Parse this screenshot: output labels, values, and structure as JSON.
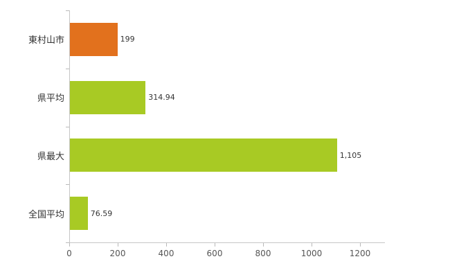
{
  "chart_data": {
    "type": "bar",
    "orientation": "horizontal",
    "title": "",
    "xlabel": "",
    "ylabel": "",
    "categories": [
      "東村山市",
      "県平均",
      "県最大",
      "全国平均"
    ],
    "values": [
      199,
      314.94,
      1105,
      76.59
    ],
    "value_labels": [
      "199",
      "314.94",
      "1,105",
      "76.59"
    ],
    "colors": [
      "#e2711d",
      "#a8ca24",
      "#a8ca24",
      "#a8ca24"
    ],
    "xlim": [
      0,
      1300
    ],
    "xticks": [
      0,
      200,
      400,
      600,
      800,
      1000,
      1200
    ],
    "grid": false,
    "legend": "none"
  },
  "style_colors": {
    "axis_line": "#c6c6c6",
    "tick": "#b9b9b9",
    "label_text": "#333333",
    "axis_text": "#555555",
    "background": "#ffffff"
  }
}
